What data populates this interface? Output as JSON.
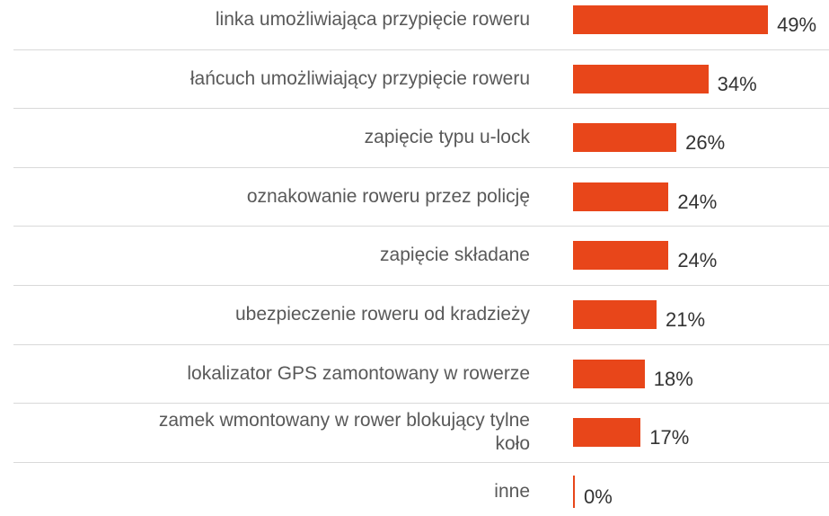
{
  "chart_data": {
    "type": "bar",
    "orientation": "horizontal",
    "categories": [
      "linka umożliwiająca przypięcie roweru",
      "łańcuch umożliwiający przypięcie roweru",
      "zapięcie typu u-lock",
      "oznakowanie roweru przez policję",
      "zapięcie składane",
      "ubezpieczenie roweru od kradzieży",
      "lokalizator GPS zamontowany w rowerze",
      "zamek wmontowany w rower blokujący tylne koło",
      "inne"
    ],
    "values": [
      49,
      34,
      26,
      24,
      24,
      21,
      18,
      17,
      0
    ],
    "value_labels": [
      "49%",
      "34%",
      "26%",
      "24%",
      "24%",
      "21%",
      "18%",
      "17%",
      "0%"
    ],
    "color": "#e8461a"
  }
}
